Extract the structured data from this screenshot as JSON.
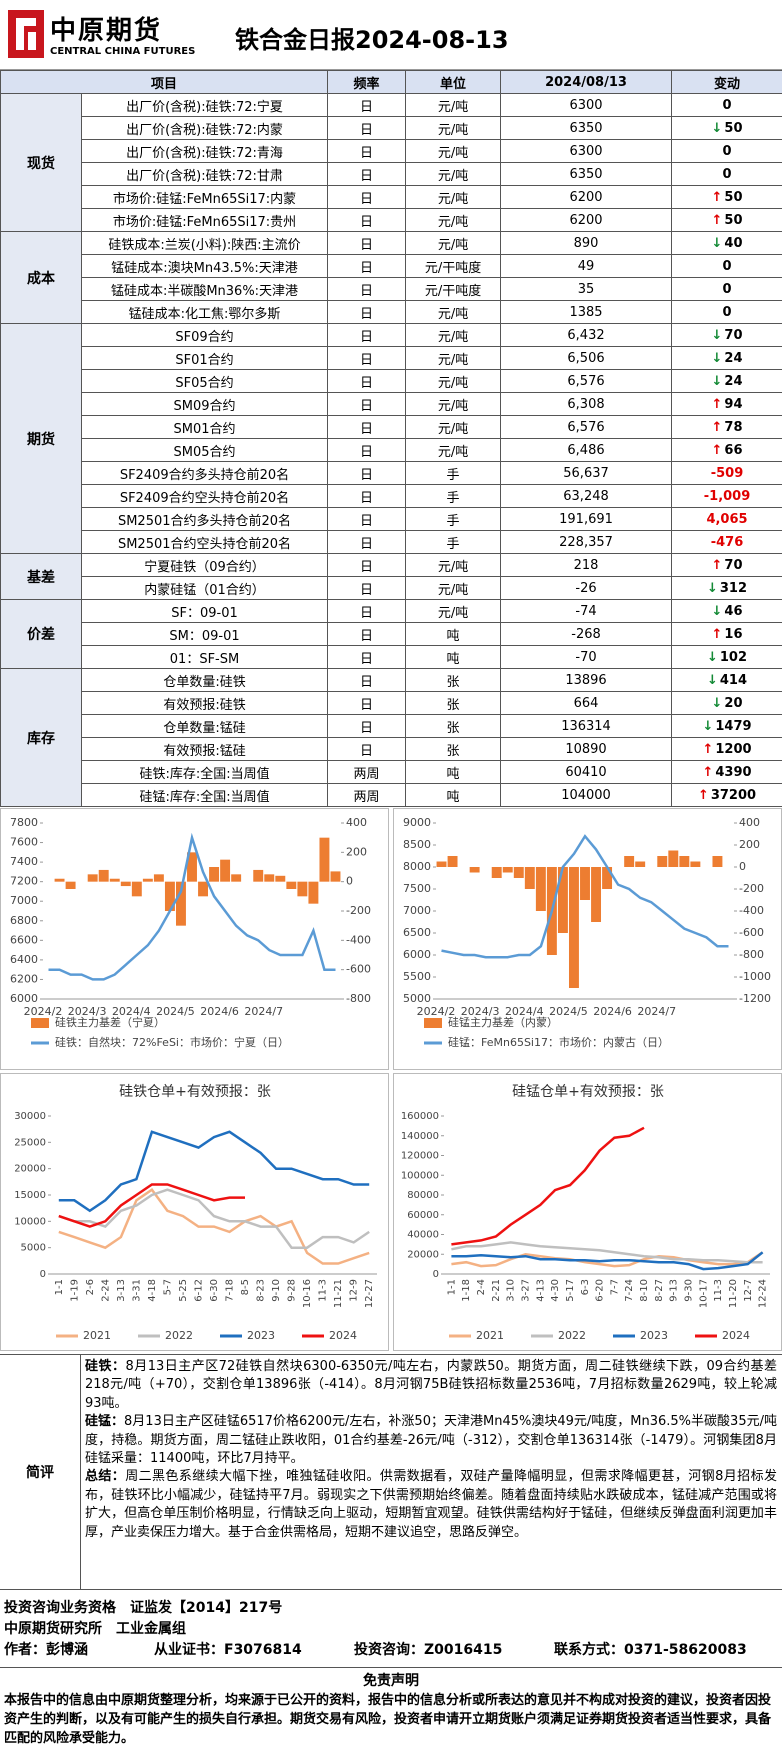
{
  "header": {
    "logo_cn": "中原期货",
    "logo_en": "CENTRAL CHINA FUTURES",
    "title": "铁合金日报2024-08-13"
  },
  "table": {
    "columns": [
      "项目",
      "频率",
      "单位",
      "2024/08/13",
      "变动"
    ],
    "groups": [
      {
        "name": "现货",
        "rows": [
          {
            "item": "出厂价(含税):硅铁:72:宁夏",
            "freq": "日",
            "unit": "元/吨",
            "value": "6300",
            "change": "0"
          },
          {
            "item": "出厂价(含税):硅铁:72:内蒙",
            "freq": "日",
            "unit": "元/吨",
            "value": "6350",
            "change": "50",
            "trend": "down"
          },
          {
            "item": "出厂价(含税):硅铁:72:青海",
            "freq": "日",
            "unit": "元/吨",
            "value": "6300",
            "change": "0"
          },
          {
            "item": "出厂价(含税):硅铁:72:甘肃",
            "freq": "日",
            "unit": "元/吨",
            "value": "6350",
            "change": "0"
          },
          {
            "item": "市场价:硅锰:FeMn65Si17:内蒙",
            "freq": "日",
            "unit": "元/吨",
            "value": "6200",
            "change": "50",
            "trend": "up"
          },
          {
            "item": "市场价:硅锰:FeMn65Si17:贵州",
            "freq": "日",
            "unit": "元/吨",
            "value": "6200",
            "change": "50",
            "trend": "up"
          }
        ]
      },
      {
        "name": "成本",
        "rows": [
          {
            "item": "硅铁成本:兰炭(小料):陕西:主流价",
            "freq": "日",
            "unit": "元/吨",
            "value": "890",
            "change": "40",
            "trend": "down"
          },
          {
            "item": "锰硅成本:澳块Mn43.5%:天津港",
            "freq": "日",
            "unit": "元/干吨度",
            "value": "49",
            "change": "0"
          },
          {
            "item": "锰硅成本:半碳酸Mn36%:天津港",
            "freq": "日",
            "unit": "元/干吨度",
            "value": "35",
            "change": "0"
          },
          {
            "item": "锰硅成本:化工焦:鄂尔多斯",
            "freq": "日",
            "unit": "元/吨",
            "value": "1385",
            "change": "0"
          }
        ]
      },
      {
        "name": "期货",
        "rows": [
          {
            "item": "SF09合约",
            "freq": "日",
            "unit": "元/吨",
            "value": "6,432",
            "change": "70",
            "trend": "down"
          },
          {
            "item": "SF01合约",
            "freq": "日",
            "unit": "元/吨",
            "value": "6,506",
            "change": "24",
            "trend": "down"
          },
          {
            "item": "SF05合约",
            "freq": "日",
            "unit": "元/吨",
            "value": "6,576",
            "change": "24",
            "trend": "down"
          },
          {
            "item": "SM09合约",
            "freq": "日",
            "unit": "元/吨",
            "value": "6,308",
            "change": "94",
            "trend": "up"
          },
          {
            "item": "SM01合约",
            "freq": "日",
            "unit": "元/吨",
            "value": "6,576",
            "change": "78",
            "trend": "up"
          },
          {
            "item": "SM05合约",
            "freq": "日",
            "unit": "元/吨",
            "value": "6,486",
            "change": "66",
            "trend": "up"
          },
          {
            "item": "SF2409合约多头持仓前20名",
            "freq": "日",
            "unit": "手",
            "value": "56,637",
            "change": "-509",
            "color": "#e00000"
          },
          {
            "item": "SF2409合约空头持仓前20名",
            "freq": "日",
            "unit": "手",
            "value": "63,248",
            "change": "-1,009",
            "color": "#e00000"
          },
          {
            "item": "SM2501合约多头持仓前20名",
            "freq": "日",
            "unit": "手",
            "value": "191,691",
            "change": "4,065",
            "color": "#e00000"
          },
          {
            "item": "SM2501合约空头持仓前20名",
            "freq": "日",
            "unit": "手",
            "value": "228,357",
            "change": "-476",
            "color": "#e00000"
          }
        ]
      },
      {
        "name": "基差",
        "rows": [
          {
            "item": "宁夏硅铁（09合约）",
            "freq": "日",
            "unit": "元/吨",
            "value": "218",
            "change": "70",
            "trend": "up"
          },
          {
            "item": "内蒙硅锰（01合约）",
            "freq": "日",
            "unit": "元/吨",
            "value": "-26",
            "change": "312",
            "trend": "down"
          }
        ]
      },
      {
        "name": "价差",
        "rows": [
          {
            "item": "SF：09-01",
            "freq": "日",
            "unit": "元/吨",
            "value": "-74",
            "change": "46",
            "trend": "down"
          },
          {
            "item": "SM：09-01",
            "freq": "日",
            "unit": "吨",
            "value": "-268",
            "change": "16",
            "trend": "up"
          },
          {
            "item": "01：SF-SM",
            "freq": "日",
            "unit": "吨",
            "value": "-70",
            "change": "102",
            "trend": "down"
          }
        ]
      },
      {
        "name": "库存",
        "rows": [
          {
            "item": "仓单数量:硅铁",
            "freq": "日",
            "unit": "张",
            "value": "13896",
            "change": "414",
            "trend": "down"
          },
          {
            "item": "有效预报:硅铁",
            "freq": "日",
            "unit": "张",
            "value": "664",
            "change": "20",
            "trend": "down"
          },
          {
            "item": "仓单数量:锰硅",
            "freq": "日",
            "unit": "张",
            "value": "136314",
            "change": "1479",
            "trend": "down"
          },
          {
            "item": "有效预报:锰硅",
            "freq": "日",
            "unit": "张",
            "value": "10890",
            "change": "1200",
            "trend": "up"
          },
          {
            "item": "硅铁:库存:全国:当周值",
            "freq": "两周",
            "unit": "吨",
            "value": "60410",
            "change": "4390",
            "trend": "up"
          },
          {
            "item": "硅锰:库存:全国:当周值",
            "freq": "两周",
            "unit": "吨",
            "value": "104000",
            "change": "37200",
            "trend": "up"
          }
        ]
      }
    ]
  },
  "chart_data": [
    {
      "type": "combo",
      "categories": [
        "2024/2",
        null,
        null,
        null,
        "2024/3",
        null,
        null,
        null,
        "2024/4",
        null,
        null,
        null,
        "2024/5",
        null,
        null,
        null,
        "2024/6",
        null,
        null,
        null,
        "2024/7",
        null,
        null,
        null,
        null,
        null,
        null
      ],
      "ylim": [
        6000,
        7800
      ],
      "yticks": [
        6000,
        6200,
        6400,
        6600,
        6800,
        7000,
        7200,
        7400,
        7600,
        7800
      ],
      "y2lim": [
        -800,
        400
      ],
      "y2ticks": [
        -800,
        -600,
        -400,
        -200,
        0,
        200,
        400
      ],
      "series": [
        {
          "name": "硅铁主力基差（宁夏）",
          "kind": "bar",
          "axis": "y2",
          "color": "#ed7d31",
          "values": [
            0,
            20,
            -50,
            0,
            50,
            80,
            20,
            -30,
            -100,
            20,
            50,
            -200,
            -300,
            200,
            -100,
            100,
            150,
            50,
            0,
            80,
            50,
            40,
            -50,
            -100,
            -150,
            300,
            70
          ]
        },
        {
          "name": "硅铁：自然块：72%FeSi：市场价：宁夏（日）",
          "kind": "line",
          "color": "#5b9bd5",
          "values": [
            6300,
            6300,
            6250,
            6250,
            6200,
            6200,
            6250,
            6350,
            6450,
            6550,
            6700,
            6900,
            7100,
            7650,
            7300,
            7050,
            6900,
            6750,
            6650,
            6600,
            6500,
            6450,
            6450,
            6450,
            6700,
            6300,
            6300
          ]
        }
      ]
    },
    {
      "type": "combo",
      "categories": [
        "2024/2",
        null,
        null,
        null,
        "2024/3",
        null,
        null,
        null,
        "2024/4",
        null,
        null,
        null,
        "2024/5",
        null,
        null,
        null,
        "2024/6",
        null,
        null,
        null,
        "2024/7",
        null,
        null,
        null,
        null,
        null,
        null
      ],
      "ylim": [
        5000,
        9000
      ],
      "yticks": [
        5000,
        5500,
        6000,
        6500,
        7000,
        7500,
        8000,
        8500,
        9000
      ],
      "y2lim": [
        -1200,
        400
      ],
      "y2ticks": [
        -1200,
        -1000,
        -800,
        -600,
        -400,
        -200,
        0,
        200,
        400
      ],
      "series": [
        {
          "name": "硅锰主力基差（内蒙）",
          "kind": "bar",
          "axis": "y2",
          "color": "#ed7d31",
          "values": [
            50,
            100,
            0,
            -50,
            0,
            -100,
            -50,
            -100,
            -200,
            -400,
            -800,
            -600,
            -1100,
            -300,
            -500,
            -200,
            0,
            100,
            50,
            0,
            100,
            150,
            100,
            50,
            0,
            100,
            0
          ]
        },
        {
          "name": "硅锰：FeMn65Si17：市场价：内蒙古（日）",
          "kind": "line",
          "color": "#5b9bd5",
          "values": [
            6100,
            6050,
            6000,
            6000,
            5950,
            5950,
            5950,
            6000,
            6000,
            6200,
            7000,
            8000,
            8300,
            8700,
            8400,
            8000,
            7600,
            7500,
            7300,
            7200,
            7000,
            6800,
            6600,
            6500,
            6400,
            6200,
            6200
          ]
        }
      ]
    },
    {
      "type": "line",
      "title": "硅铁仓单+有效预报：张",
      "categories": [
        "1-1",
        "1-19",
        "2-6",
        "2-24",
        "3-13",
        "3-31",
        "4-18",
        "5-7",
        "5-25",
        "6-12",
        "6-30",
        "7-18",
        "8-5",
        "8-23",
        "9-10",
        "9-28",
        "10-16",
        "11-3",
        "11-21",
        "12-9",
        "12-27"
      ],
      "ylim": [
        0,
        30000
      ],
      "yticks": [
        0,
        5000,
        10000,
        15000,
        20000,
        25000,
        30000
      ],
      "series": [
        {
          "name": "2021",
          "color": "#f4b183",
          "values": [
            8000,
            7000,
            6000,
            5000,
            7000,
            14000,
            16000,
            12000,
            11000,
            9000,
            9000,
            8000,
            10000,
            11000,
            9000,
            10000,
            4000,
            2000,
            2000,
            3000,
            4000
          ]
        },
        {
          "name": "2022",
          "color": "#bfbfbf",
          "values": [
            11000,
            10000,
            10000,
            9000,
            12000,
            13000,
            15000,
            16000,
            15000,
            14000,
            11000,
            10000,
            10000,
            9000,
            9000,
            5000,
            5000,
            7000,
            7000,
            6000,
            8000
          ]
        },
        {
          "name": "2023",
          "color": "#1f6fbf",
          "values": [
            14000,
            14000,
            12000,
            14000,
            17000,
            18000,
            27000,
            26000,
            25000,
            24000,
            26000,
            27000,
            25000,
            23000,
            20000,
            20000,
            19000,
            18000,
            18000,
            17000,
            17000
          ]
        },
        {
          "name": "2024",
          "color": "#ee1111",
          "values": [
            11000,
            10000,
            9000,
            10000,
            13000,
            15000,
            17000,
            17000,
            16000,
            15000,
            14000,
            14500,
            14500,
            null,
            null,
            null,
            null,
            null,
            null,
            null,
            null
          ]
        }
      ]
    },
    {
      "type": "line",
      "title": "硅锰仓单+有效预报：张",
      "categories": [
        "1-1",
        "1-18",
        "2-4",
        "2-21",
        "3-10",
        "3-27",
        "4-13",
        "4-30",
        "5-17",
        "6-3",
        "6-20",
        "7-7",
        "7-24",
        "8-10",
        "8-27",
        "9-13",
        "9-30",
        "10-17",
        "11-3",
        "11-20",
        "12-7",
        "12-24"
      ],
      "ylim": [
        0,
        160000
      ],
      "yticks": [
        0,
        20000,
        40000,
        60000,
        80000,
        100000,
        120000,
        140000,
        160000
      ],
      "series": [
        {
          "name": "2021",
          "color": "#f4b183",
          "values": [
            10000,
            12000,
            8000,
            9000,
            15000,
            20000,
            18000,
            16000,
            15000,
            12000,
            10000,
            8000,
            9000,
            15000,
            18000,
            17000,
            14000,
            12000,
            10000,
            10000,
            12000,
            22000
          ]
        },
        {
          "name": "2022",
          "color": "#bfbfbf",
          "values": [
            25000,
            28000,
            28000,
            30000,
            32000,
            30000,
            28000,
            27000,
            26000,
            25000,
            24000,
            22000,
            20000,
            18000,
            17000,
            15000,
            15000,
            14000,
            14000,
            13000,
            12000,
            12000
          ]
        },
        {
          "name": "2023",
          "color": "#1f6fbf",
          "values": [
            18000,
            18000,
            19000,
            18000,
            17000,
            18000,
            15000,
            15000,
            14000,
            14000,
            13000,
            14000,
            14000,
            13000,
            12000,
            12000,
            10000,
            5000,
            6000,
            8000,
            10000,
            22000
          ]
        },
        {
          "name": "2024",
          "color": "#ee1111",
          "values": [
            30000,
            32000,
            34000,
            38000,
            50000,
            60000,
            70000,
            85000,
            90000,
            105000,
            125000,
            138000,
            140000,
            148000,
            null,
            null,
            null,
            null,
            null,
            null,
            null,
            null
          ]
        }
      ]
    }
  ],
  "commentary": {
    "label": "简评",
    "paragraphs": [
      {
        "label": "硅铁：",
        "text": "8月13日主产区72硅铁自然块6300-6350元/吨左右，内蒙跌50。期货方面，周二硅铁继续下跌，09合约基差218元/吨（+70），交割仓单13896张（-414）。8月河钢75B硅铁招标数量2536吨，7月招标数量2629吨，较上轮减93吨。"
      },
      {
        "label": "硅锰：",
        "text": "8月13日主产区硅锰6517价格6200元/左右，补涨50；天津港Mn45%澳块49元/吨度，Mn36.5%半碳酸35元/吨度，持稳。期货方面，周二锰硅止跌收阳，01合约基差-26元/吨（-312），交割仓单136314张（-1479）。河钢集团8月硅锰采量：11400吨，环比7月持平。"
      },
      {
        "label": "总结：",
        "text": "周二黑色系继续大幅下挫，唯独锰硅收阳。供需数据看，双硅产量降幅明显，但需求降幅更甚，河钢8月招标发布，硅铁环比小幅减少，硅锰持平7月。弱现实之下供需预期始终偏差。随着盘面持续贴水跌破成本，锰硅减产范围或将扩大，但高仓单压制价格明显，行情缺乏向上驱动，短期暂宜观望。硅铁供需结构好于锰硅，但继续反弹盘面利润更加丰厚，产业卖保压力增大。基于合金供需格局，短期不建议追空，思路反弹空。"
      }
    ]
  },
  "footer": {
    "qualification": "投资咨询业务资格　证监发【2014】217号",
    "institute": "中原期货研究所　工业金属组",
    "author": "作者：彭博涵",
    "license": "从业证书：F3076814",
    "consult": "投资咨询：Z0016415",
    "contact": "联系方式：0371-58620083"
  },
  "disclaimer": {
    "title": "免责声明",
    "text": "本报告中的信息由中原期货整理分析，均来源于已公开的资料，报告中的信息分析或所表达的意见并不构成对投资的建议，投资者因投资产生的判断，以及有可能产生的损失自行承担。期货交易有风险，投资者申请开立期货账户须满足证券期货投资者适当性要求，具备匹配的风险承受能力。"
  }
}
